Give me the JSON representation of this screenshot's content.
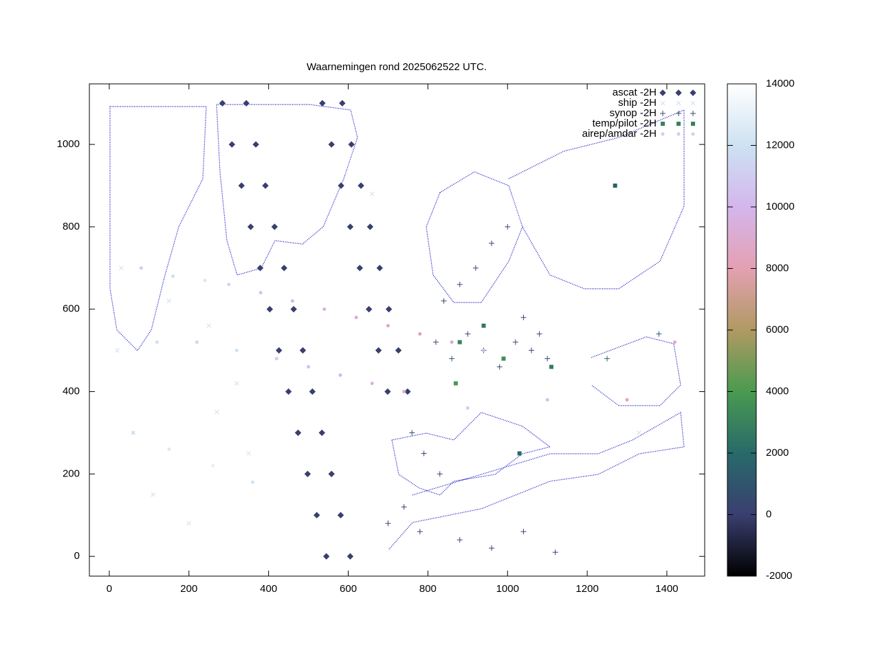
{
  "chart_data": {
    "type": "scatter",
    "title": "Waarnemingen rond 2025062522 UTC.",
    "xlim": [
      -50,
      1495
    ],
    "ylim": [
      -48,
      1147
    ],
    "xticks": [
      0,
      200,
      400,
      600,
      800,
      1000,
      1200,
      1400
    ],
    "yticks": [
      0,
      200,
      400,
      600,
      800,
      1000
    ],
    "zlim": [
      -2000,
      14000
    ],
    "zticks": [
      -2000,
      0,
      2000,
      4000,
      6000,
      8000,
      10000,
      12000,
      14000
    ],
    "colormap": [
      {
        "value": -2000,
        "color": "#000000"
      },
      {
        "value": 0,
        "color": "#3a3f70"
      },
      {
        "value": 2000,
        "color": "#286a6a"
      },
      {
        "value": 4000,
        "color": "#4a9a50"
      },
      {
        "value": 6000,
        "color": "#b09a62"
      },
      {
        "value": 8000,
        "color": "#e4a0b2"
      },
      {
        "value": 10000,
        "color": "#d4b6ec"
      },
      {
        "value": 12000,
        "color": "#cde2f2"
      },
      {
        "value": 14000,
        "color": "#ffffff"
      }
    ],
    "legend": "top-right",
    "series": [
      {
        "name": "ascat -2H",
        "marker": "diamond",
        "x": [
          545,
          605,
          521,
          581,
          498,
          558,
          474,
          534,
          450,
          510,
          426,
          486,
          403,
          463,
          379,
          439,
          355,
          415,
          332,
          392,
          308,
          368,
          284,
          344,
          699,
          749,
          676,
          726,
          652,
          702,
          629,
          679,
          605,
          655,
          582,
          632,
          558,
          608,
          535,
          585
        ],
        "values": [
          0,
          0,
          100,
          100,
          200,
          200,
          300,
          300,
          400,
          400,
          500,
          500,
          600,
          600,
          700,
          700,
          800,
          800,
          900,
          900,
          1000,
          1000,
          1100,
          1100,
          400,
          400,
          500,
          500,
          600,
          600,
          700,
          700,
          800,
          800,
          900,
          900,
          1000,
          1000,
          1100,
          1100
        ],
        "z": [
          0,
          0,
          0,
          0,
          0,
          0,
          0,
          0,
          0,
          0,
          0,
          0,
          0,
          0,
          0,
          0,
          0,
          0,
          0,
          0,
          0,
          0,
          0,
          0,
          0,
          0,
          0,
          0,
          0,
          0,
          0,
          0,
          0,
          0,
          0,
          0,
          0,
          0,
          0,
          0
        ]
      },
      {
        "name": "ship -2H",
        "marker": "cross",
        "x": [
          20,
          60,
          110,
          200,
          270,
          350,
          30,
          150,
          250,
          320,
          660,
          1330
        ],
        "values": [
          500,
          300,
          150,
          80,
          350,
          250,
          700,
          620,
          560,
          420,
          880,
          300
        ],
        "z": [
          12000,
          12000,
          12000,
          12000,
          12000,
          12000,
          12000,
          12000,
          12000,
          12000,
          12000,
          12000
        ]
      },
      {
        "name": "synop -2H",
        "marker": "plus",
        "x": [
          820,
          860,
          900,
          940,
          980,
          1020,
          1060,
          1100,
          840,
          880,
          920,
          960,
          1000,
          1040,
          1080,
          760,
          790,
          830,
          700,
          740,
          780,
          880,
          960,
          1040,
          1120,
          1250,
          1380
        ],
        "values": [
          520,
          480,
          540,
          500,
          460,
          520,
          500,
          480,
          620,
          660,
          700,
          760,
          800,
          580,
          540,
          300,
          250,
          200,
          80,
          120,
          60,
          40,
          20,
          60,
          10,
          480,
          540
        ],
        "z": [
          500,
          800,
          300,
          1000,
          600,
          400,
          200,
          300,
          100,
          200,
          100,
          50,
          100,
          300,
          200,
          800,
          400,
          200,
          100,
          50,
          0,
          0,
          100,
          50,
          0,
          1500,
          1200
        ]
      },
      {
        "name": "temp/pilot -2H",
        "marker": "square",
        "x": [
          880,
          940,
          990,
          1030,
          1110,
          1270,
          870
        ],
        "values": [
          520,
          560,
          480,
          250,
          460,
          900,
          420
        ],
        "z": [
          3000,
          2500,
          3500,
          2000,
          2800,
          1500,
          4000
        ]
      },
      {
        "name": "airep/amdar -2H",
        "marker": "dot",
        "x": [
          80,
          160,
          240,
          300,
          380,
          460,
          540,
          620,
          700,
          780,
          860,
          940,
          120,
          220,
          320,
          420,
          500,
          580,
          660,
          740,
          900,
          1100,
          1300,
          1420,
          60,
          150,
          260,
          360
        ],
        "values": [
          700,
          680,
          670,
          660,
          640,
          620,
          600,
          580,
          560,
          540,
          520,
          500,
          520,
          520,
          500,
          480,
          460,
          440,
          420,
          400,
          360,
          380,
          380,
          520,
          300,
          260,
          220,
          180
        ],
        "z": [
          11000,
          12000,
          12500,
          11500,
          10500,
          10000,
          9500,
          9000,
          8500,
          8000,
          9000,
          10000,
          12000,
          11500,
          12000,
          11000,
          10500,
          10000,
          9500,
          9000,
          11000,
          10500,
          8500,
          9000,
          12000,
          12500,
          13000,
          12000
        ]
      }
    ]
  }
}
